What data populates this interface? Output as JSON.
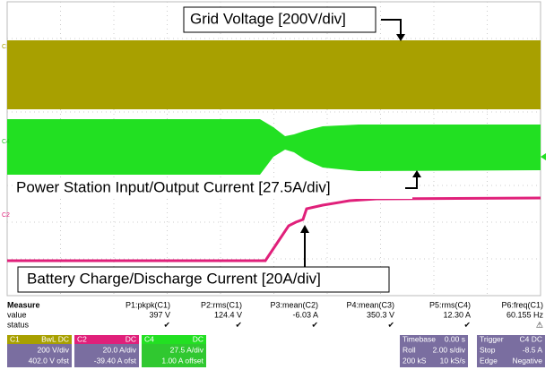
{
  "annotations": {
    "grid": "Grid Voltage [200V/div]",
    "station": "Power Station Input/Output Current [27.5A/div]",
    "battery": "Battery Charge/Discharge Current [20A/div]"
  },
  "trace_labels": [
    "C1",
    "C4",
    "C2"
  ],
  "measure": {
    "header": [
      "Measure",
      "P1:pkpk(C1)",
      "P2:rms(C1)",
      "P3:mean(C2)",
      "P4:mean(C3)",
      "P5:rms(C4)",
      "P6:freq(C1)"
    ],
    "value": [
      "value",
      "397 V",
      "124.4 V",
      "-6.03 A",
      "350.3 V",
      "12.30 A",
      "60.155 Hz"
    ],
    "status": [
      "status",
      "✔",
      "✔",
      "✔",
      "✔",
      "✔",
      "⚠"
    ]
  },
  "channels": [
    {
      "name": "C1",
      "coupling": "BwL DC",
      "scale": "200 V/div",
      "offset": "402.0 V ofst"
    },
    {
      "name": "C2",
      "coupling": "DC",
      "scale": "20.0 A/div",
      "offset": "-39.40 A ofst"
    },
    {
      "name": "C4",
      "coupling": "DC",
      "scale": "27.5 A/div",
      "offset": "1.00 A offset"
    }
  ],
  "timebase": [
    [
      "Timebase",
      "0.00 s"
    ],
    [
      "Roll",
      "2.00 s/div"
    ],
    [
      "200 kS",
      "10 kS/s"
    ]
  ],
  "trigger": [
    [
      "Trigger",
      "C4 DC"
    ],
    [
      "Stop",
      "-8.5 A"
    ],
    [
      "Edge",
      "Negative"
    ]
  ]
}
